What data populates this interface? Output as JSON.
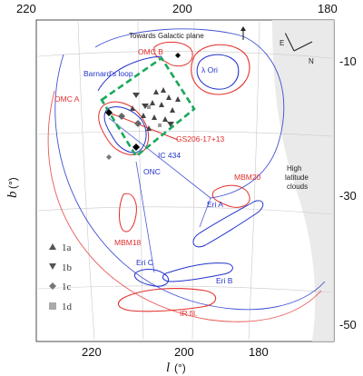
{
  "axes": {
    "x_ticks": [
      "220",
      "200",
      "180"
    ],
    "x_ticks_bottom": [
      "220",
      "200",
      "180"
    ],
    "y_ticks": [
      "-10",
      "-30",
      "-50"
    ],
    "x_title_letter": "l",
    "x_title_unit": "(°)",
    "y_title_letter": "b",
    "y_title_unit": "(°)"
  },
  "labels": {
    "galactic_plane": "Towards Galactic plane",
    "omc_b": "OMC B",
    "omc_a": "OMC A",
    "lambda_ori": "λ Ori",
    "barnards_loop": "Barnard's loop",
    "gs206": "GS206-17+13",
    "ic434": "IC 434",
    "onc": "ONC",
    "high_lat_1": "High",
    "high_lat_2": "latitude",
    "high_lat_3": "clouds",
    "mbm20": "MBM20",
    "mbm18": "MBM18",
    "eri_a": "Eri A",
    "eri_b": "Eri B",
    "eri_c": "Eri C",
    "ir_fil": "IR fil."
  },
  "compass": {
    "east": "E",
    "north": "N"
  },
  "legend": [
    {
      "label": "1a",
      "marker": "triangle-up"
    },
    {
      "label": "1b",
      "marker": "triangle-down"
    },
    {
      "label": "1c",
      "marker": "diamond"
    },
    {
      "label": "1d",
      "marker": "square"
    }
  ],
  "colors": {
    "red_contours": "#e2302b",
    "blue_contours": "#2233cc",
    "green_box": "#1aa85a",
    "grid": "#c9c9c9",
    "shade": "#e6e6e6"
  },
  "icons": {
    "arrow": "arrow-up-icon"
  }
}
